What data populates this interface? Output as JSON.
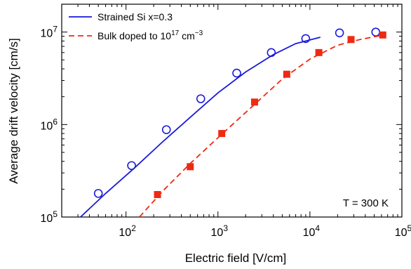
{
  "chart_data": {
    "type": "scatter",
    "title": "",
    "xlabel": "Electric field [V/cm]",
    "ylabel": "Average drift velocity [cm/s]",
    "xscale": "log",
    "yscale": "log",
    "xlim": [
      20,
      100000
    ],
    "ylim": [
      100000,
      20000000
    ],
    "x_ticks": [
      {
        "value": 100,
        "base": "10",
        "exp": "2"
      },
      {
        "value": 1000,
        "base": "10",
        "exp": "3"
      },
      {
        "value": 10000,
        "base": "10",
        "exp": "4"
      },
      {
        "value": 100000,
        "base": "10",
        "exp": "5"
      }
    ],
    "y_ticks": [
      {
        "value": 100000,
        "base": "10",
        "exp": "5"
      },
      {
        "value": 1000000,
        "base": "10",
        "exp": "6"
      },
      {
        "value": 10000000,
        "base": "10",
        "exp": "7"
      }
    ],
    "legend_position": "top-left",
    "legend": [
      {
        "text": "Strained Si x=0.3",
        "series": "strained"
      },
      {
        "text_prefix": "Bulk doped to 10",
        "text_sup": "17",
        "text_mid": " cm",
        "text_sup2": "−3",
        "series": "bulk"
      }
    ],
    "annotation": "T = 300 K",
    "series": [
      {
        "id": "strained",
        "color": "#1a1adc",
        "line_style": "solid",
        "marker": "open-circle",
        "line": {
          "x": [
            32,
            60,
            120,
            250,
            500,
            1000,
            2000,
            4000,
            7000,
            13000
          ],
          "y": [
            100000,
            180000,
            330000,
            650000,
            1200000,
            2200000,
            3700000,
            5700000,
            7500000,
            8800000
          ]
        },
        "points": {
          "x": [
            50,
            115,
            275,
            650,
            1600,
            3800,
            9000,
            21000,
            52000
          ],
          "y": [
            180000,
            360000,
            880000,
            1900000,
            3600000,
            6000000,
            8500000,
            9800000,
            10000000
          ]
        }
      },
      {
        "id": "bulk",
        "color": "#ee2a12",
        "line_style": "dashed",
        "marker": "filled-square",
        "line": {
          "x": [
            140,
            250,
            500,
            1000,
            2000,
            5000,
            10000,
            20000,
            35000,
            60000
          ],
          "y": [
            100000,
            190000,
            380000,
            720000,
            1350000,
            3100000,
            5100000,
            7200000,
            8300000,
            9200000
          ]
        },
        "points": {
          "x": [
            220,
            500,
            1100,
            2500,
            5600,
            12500,
            28000,
            62000
          ],
          "y": [
            175000,
            350000,
            800000,
            1750000,
            3500000,
            6000000,
            8300000,
            9300000
          ]
        }
      }
    ]
  }
}
